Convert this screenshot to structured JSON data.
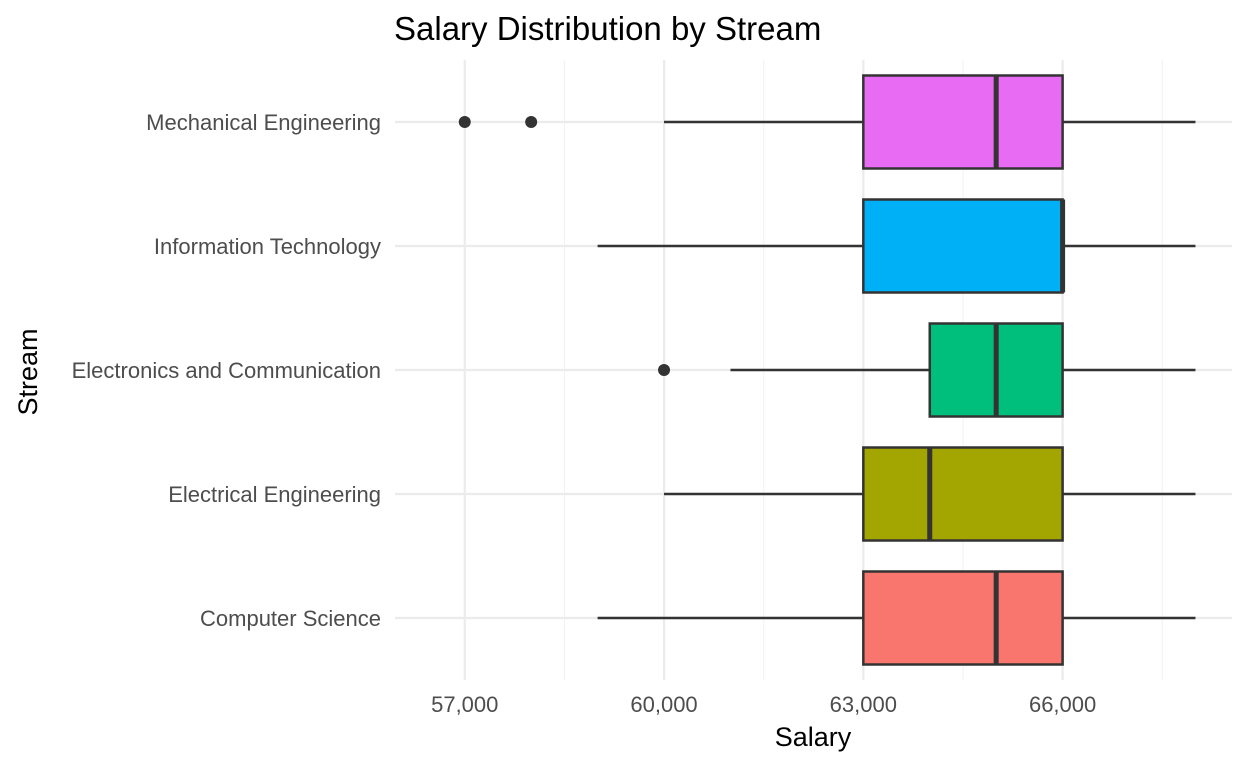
{
  "chart_data": {
    "type": "boxplot",
    "title": "Salary Distribution by Stream",
    "xlabel": "Salary",
    "ylabel": "Stream",
    "xlim": [
      55950,
      68550
    ],
    "x_ticks": [
      57000,
      60000,
      63000,
      66000
    ],
    "x_tick_labels": [
      "57,000",
      "60,000",
      "63,000",
      "66,000"
    ],
    "grid": true,
    "legend": "none",
    "series": [
      {
        "name": "Computer Science",
        "color": "#F8766D",
        "whisker_low": 59000,
        "q1": 63000,
        "median": 65000,
        "q3": 66000,
        "whisker_high": 68000,
        "outliers": []
      },
      {
        "name": "Electrical Engineering",
        "color": "#A3A500",
        "whisker_low": 60000,
        "q1": 63000,
        "median": 64000,
        "q3": 66000,
        "whisker_high": 68000,
        "outliers": []
      },
      {
        "name": "Electronics and Communication",
        "color": "#00BF7D",
        "whisker_low": 61000,
        "q1": 64000,
        "median": 65000,
        "q3": 66000,
        "whisker_high": 68000,
        "outliers": [
          60000
        ]
      },
      {
        "name": "Information Technology",
        "color": "#00B0F6",
        "whisker_low": 59000,
        "q1": 63000,
        "median": 66000,
        "q3": 66000,
        "whisker_high": 68000,
        "outliers": []
      },
      {
        "name": "Mechanical Engineering",
        "color": "#E76BF3",
        "whisker_low": 60000,
        "q1": 63000,
        "median": 65000,
        "q3": 66000,
        "whisker_high": 68000,
        "outliers": [
          57000,
          58000
        ]
      }
    ]
  }
}
